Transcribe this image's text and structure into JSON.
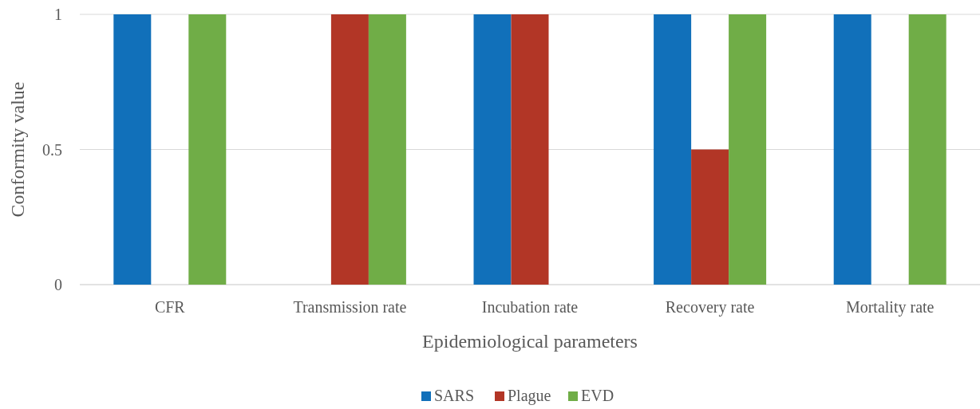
{
  "chart_data": {
    "type": "bar",
    "xlabel": "Epidemiological parameters",
    "ylabel": "Conformity value",
    "categories": [
      "CFR",
      "Transmission rate",
      "Incubation rate",
      "Recovery rate",
      "Mortality rate"
    ],
    "series": [
      {
        "name": "SARS",
        "color": "#1170ba",
        "values": [
          1,
          0,
          1,
          1,
          1
        ]
      },
      {
        "name": "Plague",
        "color": "#b23626",
        "values": [
          0,
          1,
          1,
          0.5,
          0
        ]
      },
      {
        "name": "EVD",
        "color": "#70ad47",
        "values": [
          1,
          1,
          0,
          1,
          1
        ]
      }
    ],
    "ylim": [
      0,
      1
    ],
    "yticks": [
      0,
      0.5,
      1
    ],
    "grid": "y",
    "legend": "bottom"
  }
}
